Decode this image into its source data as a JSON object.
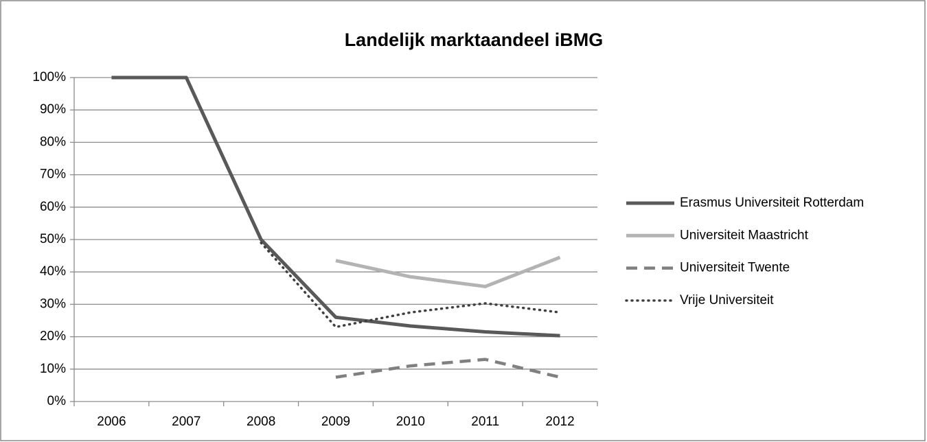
{
  "chart_data": {
    "type": "line",
    "title": "Landelijk marktaandeel iBMG",
    "categories": [
      "2006",
      "2007",
      "2008",
      "2009",
      "2010",
      "2011",
      "2012"
    ],
    "series": [
      {
        "name": "Erasmus Universiteit Rotterdam",
        "color": "#595959",
        "style": "solid",
        "values": [
          100,
          100,
          50,
          26,
          23.3,
          21.5,
          20.3
        ]
      },
      {
        "name": "Universiteit Maastricht",
        "color": "#b3b3b3",
        "style": "solid",
        "values": [
          null,
          null,
          null,
          43.5,
          38.5,
          35.5,
          44.5
        ]
      },
      {
        "name": "Universiteit Twente",
        "color": "#808080",
        "style": "dashed",
        "values": [
          null,
          null,
          null,
          7.5,
          11,
          13,
          7.5
        ]
      },
      {
        "name": "Vrije Universiteit",
        "color": "#404040",
        "style": "dotted",
        "values": [
          null,
          null,
          49,
          23,
          27.5,
          30.3,
          27.5
        ]
      }
    ],
    "ylim": [
      0,
      100
    ],
    "yticks": [
      {
        "value": 0,
        "label": "0%"
      },
      {
        "value": 10,
        "label": "10%"
      },
      {
        "value": 20,
        "label": "20%"
      },
      {
        "value": 30,
        "label": "30%"
      },
      {
        "value": 40,
        "label": "40%"
      },
      {
        "value": 50,
        "label": "50%"
      },
      {
        "value": 60,
        "label": "60%"
      },
      {
        "value": 70,
        "label": "70%"
      },
      {
        "value": 80,
        "label": "80%"
      },
      {
        "value": 90,
        "label": "90%"
      },
      {
        "value": 100,
        "label": "100%"
      }
    ],
    "grid": true,
    "legend": "right"
  }
}
